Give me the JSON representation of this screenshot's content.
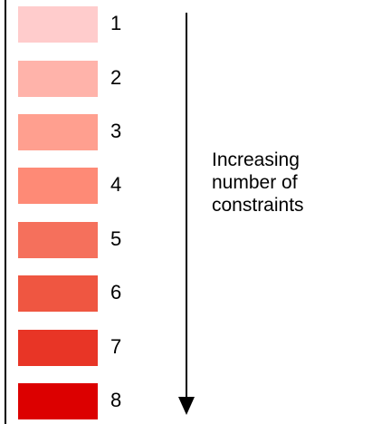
{
  "levels": [
    {
      "label": "1",
      "color": "#ffcccc"
    },
    {
      "label": "2",
      "color": "#ffb3aa"
    },
    {
      "label": "3",
      "color": "#ff9f8f"
    },
    {
      "label": "4",
      "color": "#fe8a76"
    },
    {
      "label": "5",
      "color": "#f5705c"
    },
    {
      "label": "6",
      "color": "#ef5641"
    },
    {
      "label": "7",
      "color": "#e83526"
    },
    {
      "label": "8",
      "color": "#dc0000"
    }
  ],
  "caption": {
    "line1": "Increasing",
    "line2": "number of",
    "line3": "constraints"
  }
}
